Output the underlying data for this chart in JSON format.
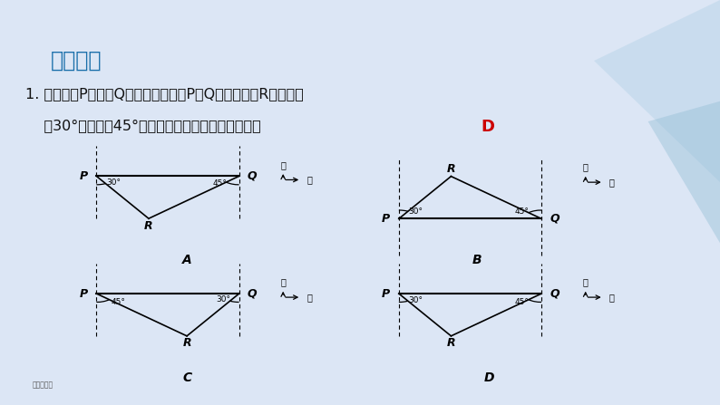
{
  "title": "随堂练习",
  "title_color": "#1a6faa",
  "bg_color": "#dce6f5",
  "header_blue": "#3daee0",
  "header_gold": "#f5a623",
  "text_line1": "1. 已知：岛P位于岛Q的正西方，由岛P，Q分别测得船R位于南偏",
  "text_line2": "    东30°和南偏西45°方向上，符合条件的示意图是（     ",
  "answer_D": "D",
  "answer_color": "#cc0000",
  "diagram_bg": "#ffffff",
  "font_color": "#111111"
}
